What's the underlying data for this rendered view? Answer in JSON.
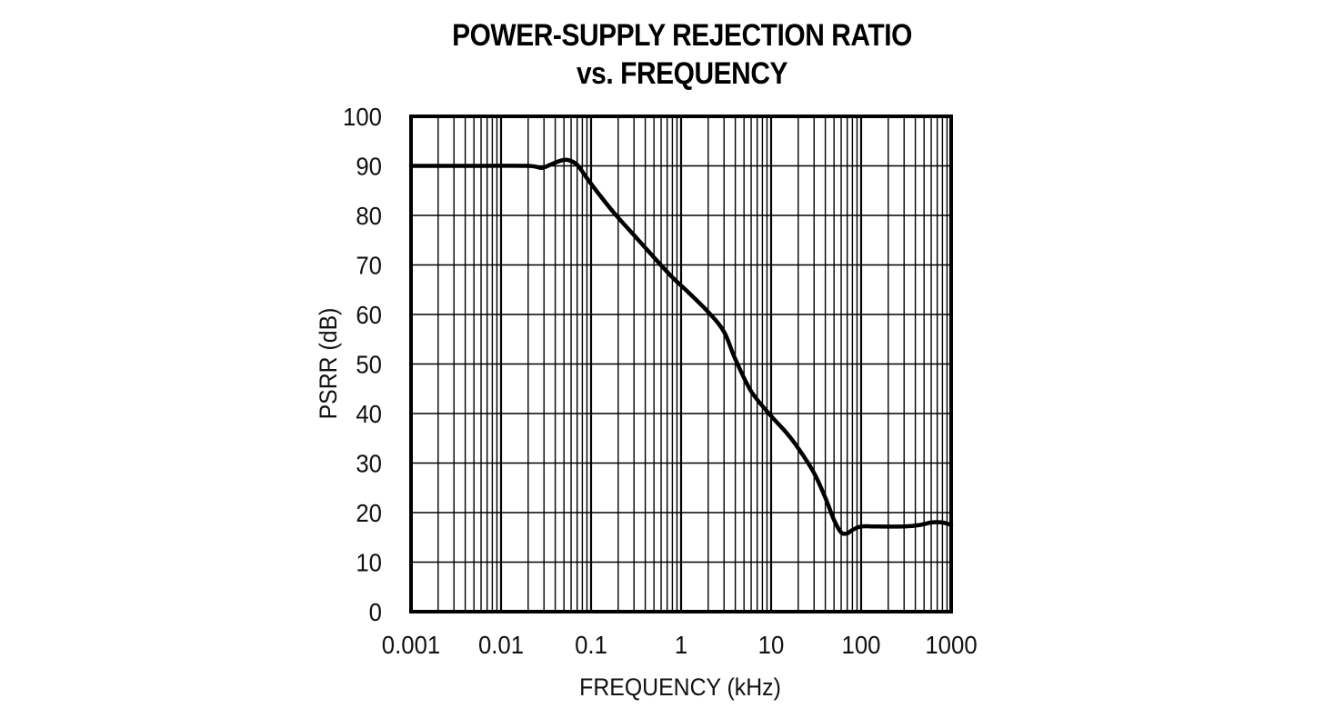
{
  "chart_data": {
    "type": "line",
    "title": "POWER-SUPPLY REJECTION RATIO",
    "subtitle": "vs. FREQUENCY",
    "xlabel": "FREQUENCY (kHz)",
    "ylabel": "PSRR (dB)",
    "x_scale": "log",
    "xlim": [
      0.001,
      1000
    ],
    "ylim": [
      0,
      100
    ],
    "grid": true,
    "x_ticks": [
      {
        "value": 0.001,
        "label": "0.001"
      },
      {
        "value": 0.01,
        "label": "0.01"
      },
      {
        "value": 0.1,
        "label": "0.1"
      },
      {
        "value": 1,
        "label": "1"
      },
      {
        "value": 10,
        "label": "10"
      },
      {
        "value": 100,
        "label": "100"
      },
      {
        "value": 1000,
        "label": "1000"
      }
    ],
    "y_ticks": [
      {
        "value": 0,
        "label": "0"
      },
      {
        "value": 10,
        "label": "10"
      },
      {
        "value": 20,
        "label": "20"
      },
      {
        "value": 30,
        "label": "30"
      },
      {
        "value": 40,
        "label": "40"
      },
      {
        "value": 50,
        "label": "50"
      },
      {
        "value": 60,
        "label": "60"
      },
      {
        "value": 70,
        "label": "70"
      },
      {
        "value": 80,
        "label": "80"
      },
      {
        "value": 90,
        "label": "90"
      },
      {
        "value": 100,
        "label": "100"
      }
    ],
    "series": [
      {
        "x": [
          0.001,
          0.005,
          0.02,
          0.028,
          0.035,
          0.045,
          0.055,
          0.07,
          0.09,
          0.12,
          0.18,
          0.3,
          0.5,
          0.8,
          1.2,
          2,
          3,
          4,
          6,
          10,
          15,
          20,
          30,
          40,
          50,
          60,
          70,
          80,
          100,
          150,
          300,
          450,
          600,
          800,
          1000
        ],
        "y": [
          90,
          90,
          90,
          89.6,
          90.2,
          91,
          91.2,
          90.2,
          87.5,
          84.5,
          80.5,
          76,
          71.5,
          67.5,
          64.5,
          60.5,
          56.5,
          51,
          44.5,
          39.5,
          36,
          33,
          28,
          23,
          18.5,
          16,
          15.8,
          16.5,
          17.2,
          17.2,
          17.2,
          17.5,
          18,
          18,
          17.5
        ]
      }
    ]
  }
}
